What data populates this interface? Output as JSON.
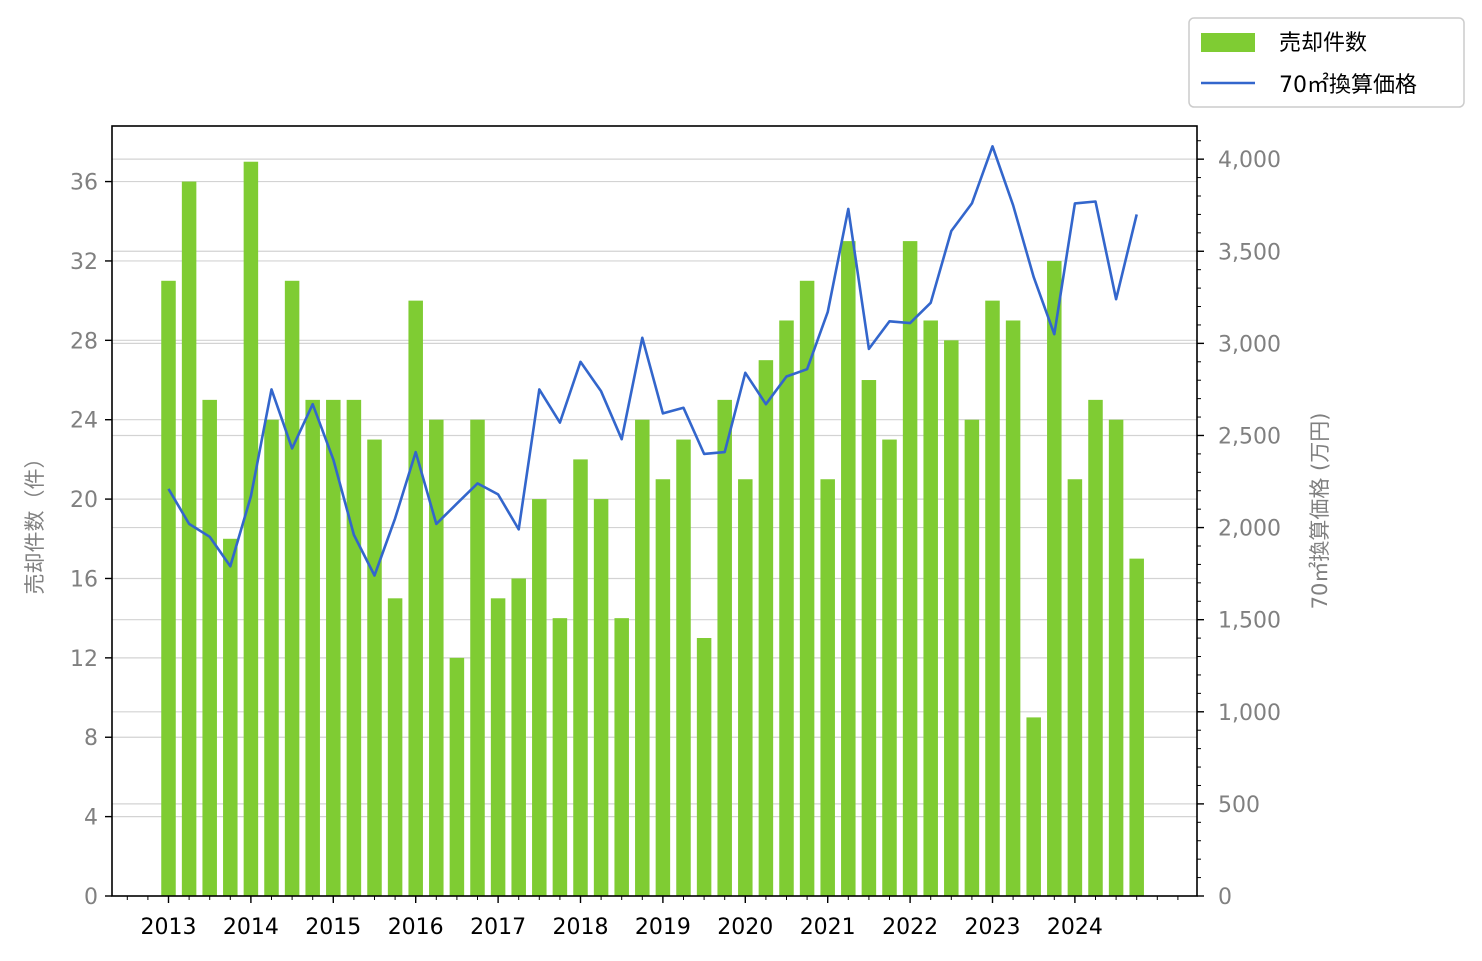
{
  "chart_data": {
    "type": "bar",
    "x_ticks": [
      "2013",
      "2014",
      "2015",
      "2016",
      "2017",
      "2018",
      "2019",
      "2020",
      "2021",
      "2022",
      "2023",
      "2024"
    ],
    "ylabel_left": "売却件数（件）",
    "ylabel_right": "70㎡換算価格 (万円)",
    "yticks_left": [
      "0",
      "4",
      "8",
      "12",
      "16",
      "20",
      "24",
      "28",
      "32",
      "36"
    ],
    "yticks_right": [
      "0",
      "500",
      "1,000",
      "1,500",
      "2,000",
      "2,500",
      "3,000",
      "3,500",
      "4,000"
    ],
    "ylim_left": [
      0,
      38.8
    ],
    "ylim_right": [
      0,
      4180
    ],
    "grid": true,
    "legend_position": "top-right",
    "colors": {
      "bar": "#7fcc33",
      "line": "#3366cc",
      "grid": "#d3d3d3",
      "tick_gray": "#808080"
    },
    "series": [
      {
        "name": "売却件数",
        "kind": "bar",
        "axis": "left",
        "values": [
          31,
          36,
          25,
          18,
          37,
          24,
          31,
          25,
          25,
          25,
          23,
          15,
          30,
          24,
          12,
          24,
          15,
          16,
          20,
          14,
          22,
          20,
          14,
          24,
          21,
          23,
          13,
          25,
          21,
          27,
          29,
          31,
          21,
          33,
          26,
          23,
          33,
          29,
          28,
          24,
          30,
          29,
          9,
          32,
          21,
          25,
          24,
          17
        ]
      },
      {
        "name": "70㎡換算価格",
        "kind": "line",
        "axis": "right",
        "values": [
          2210,
          2020,
          1950,
          1790,
          2170,
          2750,
          2430,
          2670,
          2370,
          1960,
          1740,
          2050,
          2410,
          2020,
          2130,
          2240,
          2180,
          1990,
          2750,
          2570,
          2900,
          2740,
          2480,
          3030,
          2620,
          2650,
          2400,
          2410,
          2840,
          2670,
          2820,
          2860,
          3170,
          3730,
          2970,
          3120,
          3110,
          3220,
          3610,
          3760,
          4070,
          3750,
          3360,
          3050,
          3760,
          3770,
          3240,
          3700
        ]
      }
    ]
  }
}
